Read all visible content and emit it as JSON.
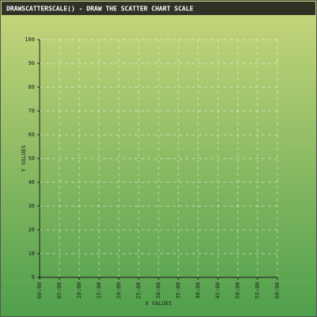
{
  "chart_data": {
    "type": "scatter",
    "title": "DRAWSCATTERSCALE() - DRAW THE SCATTER CHART SCALE",
    "x_label": "X VALUES",
    "y_label": "Y VALUES",
    "series": [],
    "xlim": [
      0,
      60
    ],
    "xticks": [
      {
        "value": 0,
        "label": "00:00"
      },
      {
        "value": 5,
        "label": "05:00"
      },
      {
        "value": 10,
        "label": "10:00"
      },
      {
        "value": 15,
        "label": "15:00"
      },
      {
        "value": 20,
        "label": "20:00"
      },
      {
        "value": 25,
        "label": "25:00"
      },
      {
        "value": 30,
        "label": "30:00"
      },
      {
        "value": 35,
        "label": "35:00"
      },
      {
        "value": 40,
        "label": "40:00"
      },
      {
        "value": 45,
        "label": "45:00"
      },
      {
        "value": 50,
        "label": "50:00"
      },
      {
        "value": 55,
        "label": "55:00"
      },
      {
        "value": 60,
        "label": "60:00"
      }
    ],
    "ylim": [
      0,
      100
    ],
    "yticks": [
      0,
      10,
      20,
      30,
      40,
      50,
      60,
      70,
      80,
      90,
      100
    ],
    "grid": true
  }
}
